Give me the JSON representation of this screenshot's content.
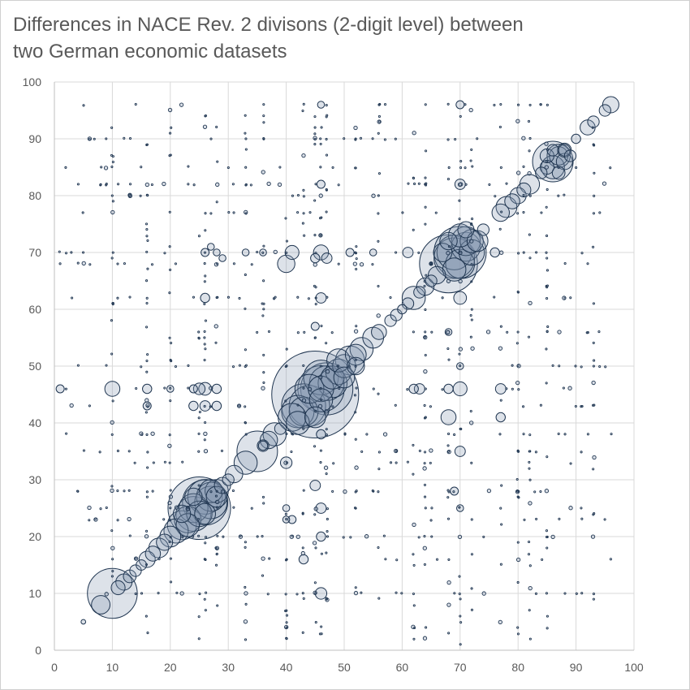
{
  "chart_data": {
    "type": "scatter",
    "subtype": "bubble",
    "title": "Differences in NACE Rev. 2 divisons (2-digit level) between\ntwo German economic datasets",
    "xlabel": "",
    "ylabel": "",
    "xlim": [
      0,
      100
    ],
    "ylim": [
      0,
      100
    ],
    "x_ticks": [
      "0",
      "10",
      "20",
      "30",
      "40",
      "50",
      "60",
      "70",
      "80",
      "90",
      "100"
    ],
    "y_ticks": [
      "0",
      "10",
      "20",
      "30",
      "40",
      "50",
      "60",
      "70",
      "80",
      "90",
      "100"
    ],
    "grid": true,
    "legend": "none",
    "colors": {
      "bubble_fill": "#8496b0",
      "bubble_edge": "#1f3550",
      "grid": "#d9d9d9",
      "text": "#595959"
    },
    "series": [
      {
        "points": [
          [
            5,
            5,
            0.4
          ],
          [
            8,
            8,
            1.6
          ],
          [
            10,
            10,
            4.3
          ],
          [
            11,
            11,
            1.2
          ],
          [
            12,
            12,
            1.4
          ],
          [
            13,
            13,
            1.1
          ],
          [
            14,
            14,
            1.0
          ],
          [
            15,
            15,
            0.9
          ],
          [
            16,
            16,
            1.4
          ],
          [
            17,
            17,
            1.3
          ],
          [
            18,
            18,
            1.7
          ],
          [
            19,
            19,
            1.4
          ],
          [
            20,
            20,
            1.8
          ],
          [
            21,
            21,
            2.1
          ],
          [
            22,
            22,
            2.5
          ],
          [
            23,
            23,
            2.3
          ],
          [
            24,
            24,
            3.0
          ],
          [
            25,
            25,
            5.4
          ],
          [
            26,
            26,
            3.9
          ],
          [
            27,
            27,
            2.5
          ],
          [
            28,
            28,
            2.0
          ],
          [
            29,
            29,
            1.4
          ],
          [
            30,
            30,
            1.0
          ],
          [
            31,
            31,
            1.5
          ],
          [
            33,
            33,
            2.0
          ],
          [
            35,
            35,
            3.5
          ],
          [
            36,
            36,
            1.0
          ],
          [
            37,
            37,
            1.5
          ],
          [
            38,
            38,
            2.0
          ],
          [
            39,
            39,
            1.0
          ],
          [
            41,
            41,
            2.4
          ],
          [
            42,
            42,
            2.8
          ],
          [
            43,
            43,
            3.8
          ],
          [
            45,
            45,
            7.5
          ],
          [
            46,
            46,
            4.0
          ],
          [
            47,
            47,
            3.0
          ],
          [
            48,
            48,
            2.0
          ],
          [
            49,
            49,
            2.2
          ],
          [
            50,
            50,
            2.0
          ],
          [
            51,
            51,
            2.5
          ],
          [
            52,
            52,
            1.8
          ],
          [
            53,
            53,
            2.0
          ],
          [
            55,
            55,
            1.8
          ],
          [
            56,
            56,
            1.3
          ],
          [
            58,
            58,
            1.0
          ],
          [
            59,
            59,
            1.0
          ],
          [
            60,
            60,
            0.8
          ],
          [
            61,
            61,
            1.0
          ],
          [
            62,
            62,
            2.0
          ],
          [
            63,
            63,
            1.0
          ],
          [
            64,
            64,
            1.5
          ],
          [
            65,
            65,
            1.0
          ],
          [
            66,
            66,
            1.5
          ],
          [
            68,
            68,
            5.0
          ],
          [
            69,
            69,
            3.5
          ],
          [
            70,
            70,
            4.5
          ],
          [
            71,
            71,
            2.5
          ],
          [
            72,
            72,
            2.0
          ],
          [
            74,
            74,
            1.0
          ],
          [
            77,
            77,
            1.5
          ],
          [
            78,
            78,
            1.8
          ],
          [
            79,
            79,
            1.3
          ],
          [
            80,
            80,
            1.4
          ],
          [
            81,
            81,
            1.2
          ],
          [
            82,
            82,
            1.7
          ],
          [
            84,
            84,
            1.0
          ],
          [
            85,
            85,
            1.2
          ],
          [
            86,
            86,
            3.5
          ],
          [
            87,
            87,
            2.0
          ],
          [
            88,
            88,
            1.0
          ],
          [
            90,
            90,
            0.8
          ],
          [
            92,
            92,
            1.3
          ],
          [
            93,
            93,
            1.0
          ],
          [
            95,
            95,
            1.0
          ],
          [
            96,
            96,
            1.4
          ],
          [
            47,
            46,
            4.5
          ],
          [
            44,
            43,
            3.5
          ],
          [
            46,
            48,
            3.0
          ],
          [
            48,
            47,
            2.5
          ],
          [
            43,
            42,
            2.5
          ],
          [
            44,
            46,
            2.5
          ],
          [
            46,
            44,
            2.0
          ],
          [
            42,
            40,
            2.0
          ],
          [
            45,
            41,
            1.8
          ],
          [
            49,
            51,
            2.0
          ],
          [
            50,
            48,
            1.8
          ],
          [
            52,
            50,
            1.5
          ],
          [
            26,
            27,
            3.0
          ],
          [
            27,
            26,
            2.8
          ],
          [
            24,
            25,
            2.5
          ],
          [
            25,
            24,
            2.2
          ],
          [
            23,
            22,
            2.0
          ],
          [
            27,
            28,
            2.0
          ],
          [
            28,
            27,
            1.8
          ],
          [
            26,
            24,
            1.8
          ],
          [
            22,
            24,
            1.5
          ],
          [
            24,
            27,
            1.5
          ],
          [
            69,
            70,
            3.0
          ],
          [
            70,
            68,
            2.5
          ],
          [
            71,
            72,
            2.5
          ],
          [
            72,
            70,
            2.2
          ],
          [
            70,
            73,
            2.0
          ],
          [
            73,
            72,
            1.8
          ],
          [
            69,
            67,
            2.0
          ],
          [
            67,
            70,
            1.6
          ],
          [
            68,
            72,
            1.5
          ],
          [
            71,
            74,
            1.4
          ],
          [
            86,
            85,
            2.0
          ],
          [
            87,
            87,
            1.6
          ],
          [
            88,
            86,
            1.4
          ],
          [
            85,
            87,
            1.2
          ],
          [
            87,
            84,
            1.1
          ],
          [
            88,
            88,
            1.2
          ],
          [
            89,
            87,
            1.0
          ],
          [
            86,
            88,
            1.0
          ],
          [
            1,
            46,
            0.7
          ],
          [
            10,
            46,
            1.3
          ],
          [
            16,
            46,
            0.8
          ],
          [
            20,
            46,
            0.6
          ],
          [
            24,
            46,
            0.7
          ],
          [
            25,
            46,
            1.0
          ],
          [
            26,
            46,
            1.1
          ],
          [
            28,
            46,
            0.8
          ],
          [
            46,
            46,
            2.2
          ],
          [
            63,
            46,
            0.9
          ],
          [
            68,
            46,
            0.8
          ],
          [
            70,
            46,
            1.2
          ],
          [
            77,
            46,
            0.9
          ],
          [
            41,
            70,
            1.2
          ],
          [
            46,
            70,
            1.3
          ],
          [
            40,
            68,
            1.5
          ],
          [
            26,
            62,
            0.8
          ],
          [
            61,
            70,
            0.9
          ],
          [
            76,
            70,
            0.8
          ],
          [
            46,
            62,
            0.9
          ],
          [
            45,
            57,
            0.7
          ],
          [
            46,
            38,
            0.8
          ],
          [
            40,
            33,
            1.0
          ],
          [
            45,
            29,
            0.9
          ],
          [
            46,
            25,
            0.9
          ],
          [
            46,
            20,
            0.8
          ],
          [
            43,
            16,
            0.8
          ],
          [
            46,
            10,
            1.0
          ],
          [
            41,
            23,
            0.7
          ],
          [
            68,
            41,
            1.3
          ],
          [
            70,
            35,
            0.9
          ],
          [
            69,
            28,
            0.7
          ],
          [
            70,
            25,
            0.6
          ],
          [
            70,
            50,
            0.6
          ],
          [
            70,
            62,
            1.1
          ],
          [
            70,
            82,
            0.9
          ],
          [
            70,
            96,
            0.7
          ],
          [
            68,
            56,
            0.6
          ],
          [
            77,
            41,
            0.8
          ],
          [
            26,
            43,
            0.9
          ],
          [
            28,
            43,
            0.8
          ],
          [
            24,
            43,
            0.8
          ],
          [
            16,
            43,
            0.7
          ],
          [
            40,
            23,
            0.6
          ],
          [
            40,
            25,
            0.6
          ],
          [
            36,
            36,
            0.8
          ],
          [
            46,
            82,
            0.7
          ],
          [
            46,
            96,
            0.6
          ],
          [
            62,
            46,
            0.8
          ],
          [
            45,
            69,
            0.8
          ],
          [
            47,
            69,
            0.9
          ],
          [
            51,
            70,
            0.7
          ],
          [
            36,
            70,
            0.6
          ],
          [
            33,
            70,
            0.6
          ],
          [
            26,
            70,
            0.7
          ],
          [
            28,
            70,
            0.6
          ],
          [
            27,
            71,
            0.6
          ],
          [
            29,
            69,
            0.6
          ],
          [
            55,
            70,
            0.6
          ]
        ]
      }
    ]
  }
}
